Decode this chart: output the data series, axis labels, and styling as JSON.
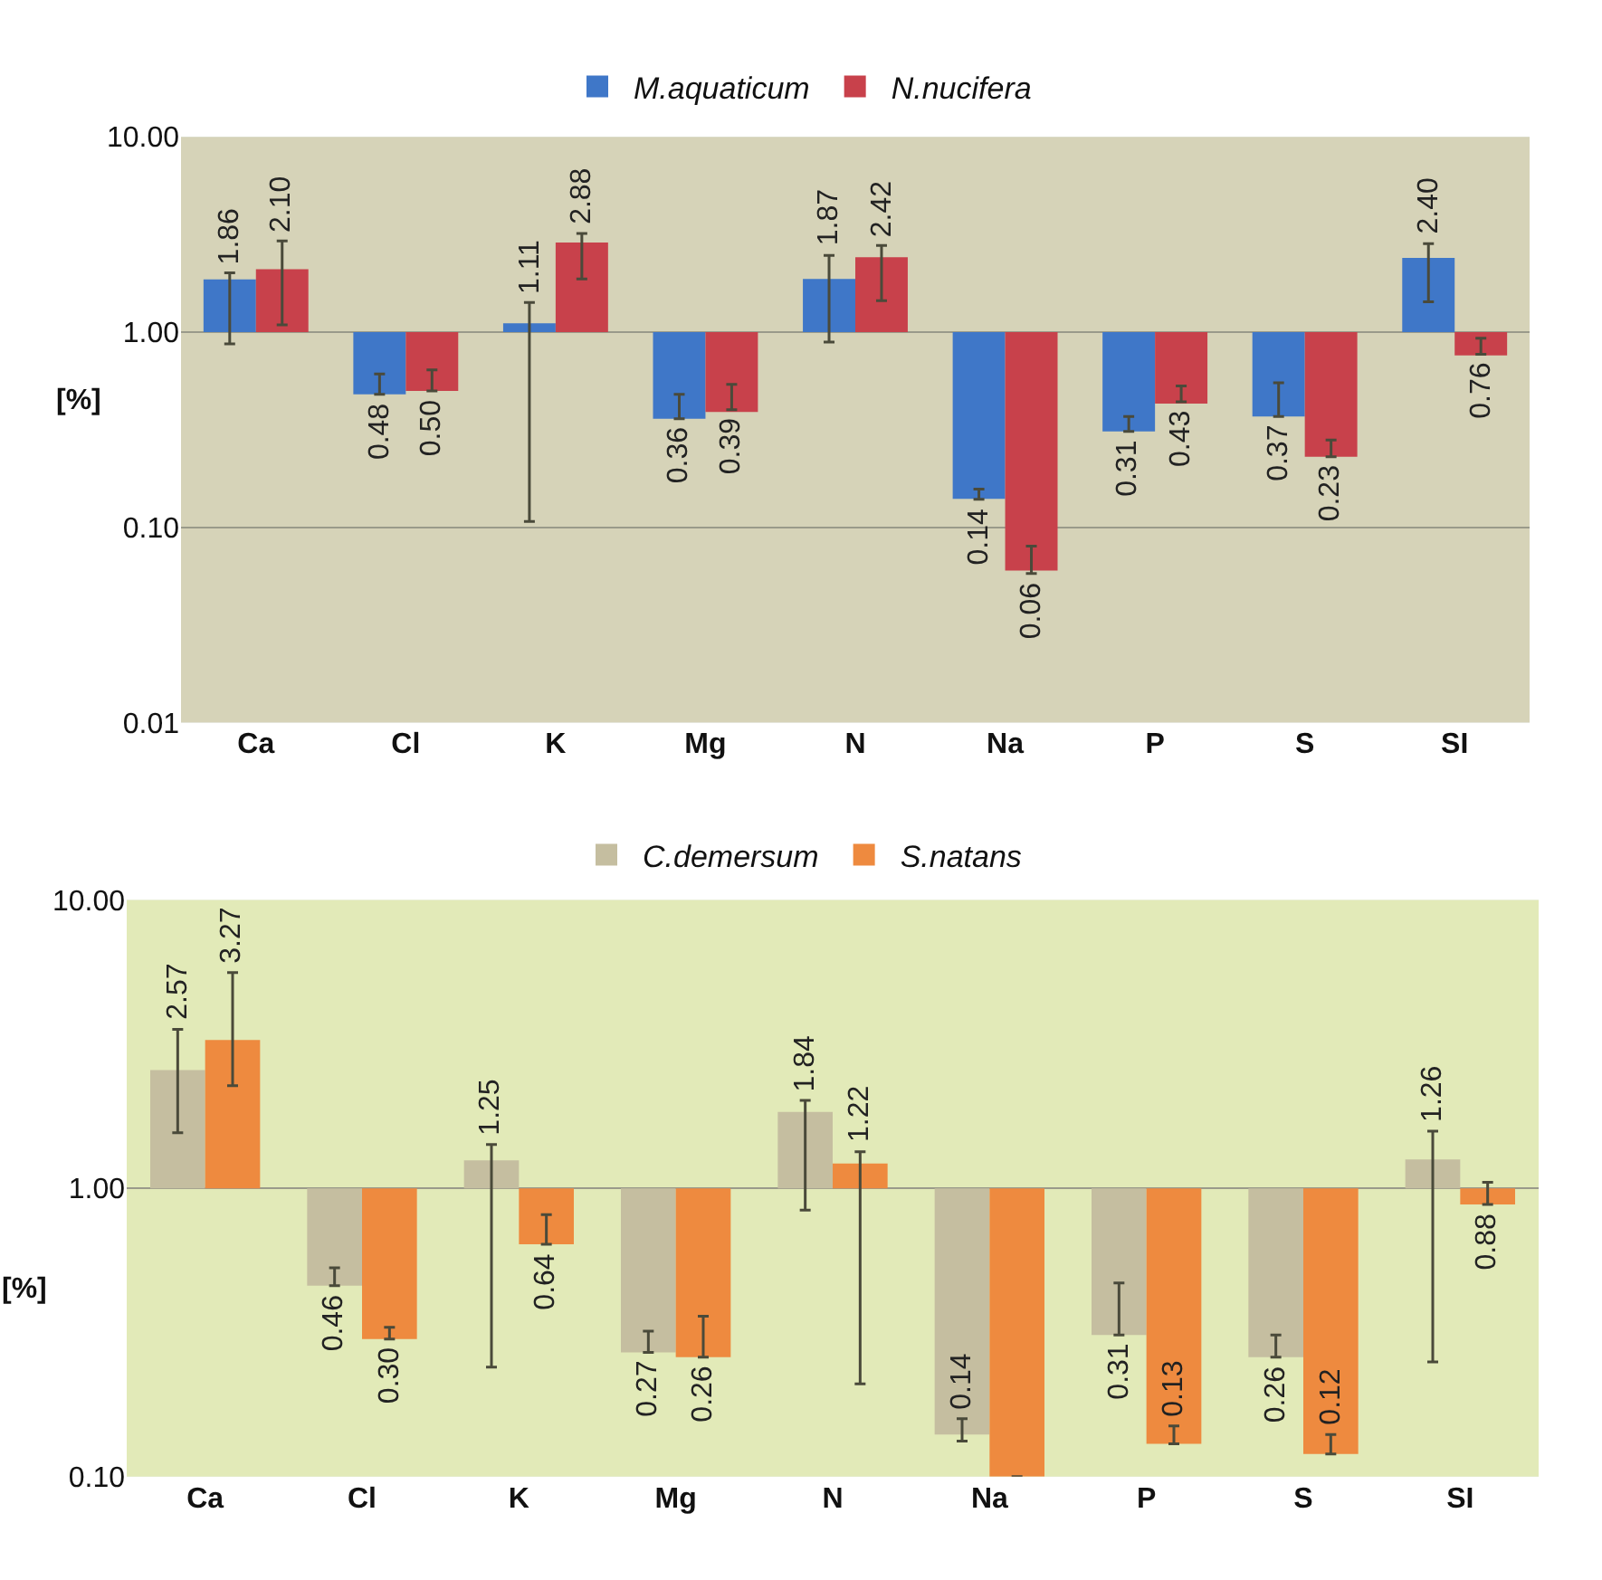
{
  "chart_data": [
    {
      "type": "bar",
      "ylabel": "[%]",
      "categories": [
        "Ca",
        "Cl",
        "K",
        "Mg",
        "N",
        "Na",
        "P",
        "S",
        "SI"
      ],
      "log": true,
      "grid": "y",
      "legend": "top",
      "ylim": [
        0.01,
        10
      ],
      "yticks": [
        {
          "value": 0.01,
          "label": "0.01"
        },
        {
          "value": 0.1,
          "label": "0.10"
        },
        {
          "value": 1,
          "label": "1.00"
        },
        {
          "value": 10,
          "label": "10.00"
        }
      ],
      "series": [
        {
          "name": "M.aquaticum",
          "color": "#3f77c8",
          "base": [
            1,
            1,
            1,
            1,
            1,
            1,
            1,
            1,
            1
          ],
          "values": [
            0.86,
            -0.52,
            0.11,
            -0.64,
            0.87,
            -0.86,
            -0.69,
            -0.63,
            1.4
          ],
          "value_labels": [
            "1.86",
            "0.48",
            "1.11",
            "0.36",
            "1.87",
            "0.14",
            "0.31",
            "0.37",
            "2.40"
          ],
          "errors": [
            [
              0.87,
              2.01
            ],
            [
              0.48,
              0.61
            ],
            [
              0.107,
              1.42
            ],
            [
              0.36,
              0.48
            ],
            [
              0.89,
              2.47
            ],
            [
              0.139,
              0.157
            ],
            [
              0.31,
              0.37
            ],
            [
              0.37,
              0.55
            ],
            [
              1.43,
              2.84
            ]
          ]
        },
        {
          "name": "N.nucifera",
          "color": "#c8414b",
          "base": [
            1,
            1,
            1,
            1,
            1,
            1,
            1,
            1,
            1
          ],
          "values": [
            1.1,
            -0.5,
            1.88,
            -0.61,
            1.42,
            -0.94,
            -0.57,
            -0.77,
            -0.24
          ],
          "value_labels": [
            "2.10",
            "0.50",
            "2.88",
            "0.39",
            "2.42",
            "0.06",
            "0.43",
            "0.23",
            "0.76"
          ],
          "errors": [
            [
              1.09,
              2.93
            ],
            [
              0.5,
              0.64
            ],
            [
              1.87,
              3.2
            ],
            [
              0.4,
              0.54
            ],
            [
              1.45,
              2.78
            ],
            [
              0.058,
              0.08
            ],
            [
              0.44,
              0.53
            ],
            [
              0.23,
              0.28
            ],
            [
              0.77,
              0.93
            ]
          ]
        }
      ]
    },
    {
      "type": "bar",
      "ylabel": "[%]",
      "categories": [
        "Ca",
        "Cl",
        "K",
        "Mg",
        "N",
        "Na",
        "P",
        "S",
        "SI"
      ],
      "log": true,
      "grid": "y",
      "legend": "top",
      "ylim": [
        0.1,
        10
      ],
      "yticks": [
        {
          "value": 0.1,
          "label": "0.10"
        },
        {
          "value": 1,
          "label": "1.00"
        },
        {
          "value": 10,
          "label": "10.00"
        }
      ],
      "series": [
        {
          "name": "C.demersum",
          "color": "#c5bea0",
          "base": [
            1,
            1,
            1,
            1,
            1,
            1,
            1,
            1,
            1
          ],
          "values": [
            1.57,
            -0.54,
            0.25,
            -0.73,
            0.84,
            -0.86,
            -0.69,
            -0.74,
            0.26
          ],
          "value_labels": [
            "2.57",
            "0.46",
            "1.25",
            "0.27",
            "1.84",
            "0.14",
            "0.31",
            "0.26",
            "1.26"
          ],
          "errors": [
            [
              1.56,
              3.56
            ],
            [
              0.46,
              0.53
            ],
            [
              0.24,
              1.42
            ],
            [
              0.27,
              0.32
            ],
            [
              0.84,
              2.02
            ],
            [
              0.133,
              0.159
            ],
            [
              0.31,
              0.47
            ],
            [
              0.26,
              0.31
            ],
            [
              0.25,
              1.58
            ]
          ]
        },
        {
          "name": "S.natans",
          "color": "#ee8a3f",
          "base": [
            1,
            1,
            1,
            1,
            1,
            1,
            1,
            1,
            1
          ],
          "values": [
            2.27,
            -0.7,
            -0.36,
            -0.74,
            0.22,
            -0.9,
            -0.87,
            -0.88,
            -0.12
          ],
          "value_labels": [
            "3.27",
            "0.30",
            "0.64",
            "0.26",
            "1.22",
            null,
            "0.13",
            "0.12",
            "0.88"
          ],
          "errors": [
            [
              2.27,
              5.6
            ],
            [
              0.3,
              0.33
            ],
            [
              0.64,
              0.81
            ],
            [
              0.26,
              0.36
            ],
            [
              0.21,
              1.34
            ],
            null,
            [
              0.13,
              0.15
            ],
            [
              0.12,
              0.14
            ],
            [
              0.88,
              1.05
            ]
          ]
        }
      ]
    }
  ]
}
